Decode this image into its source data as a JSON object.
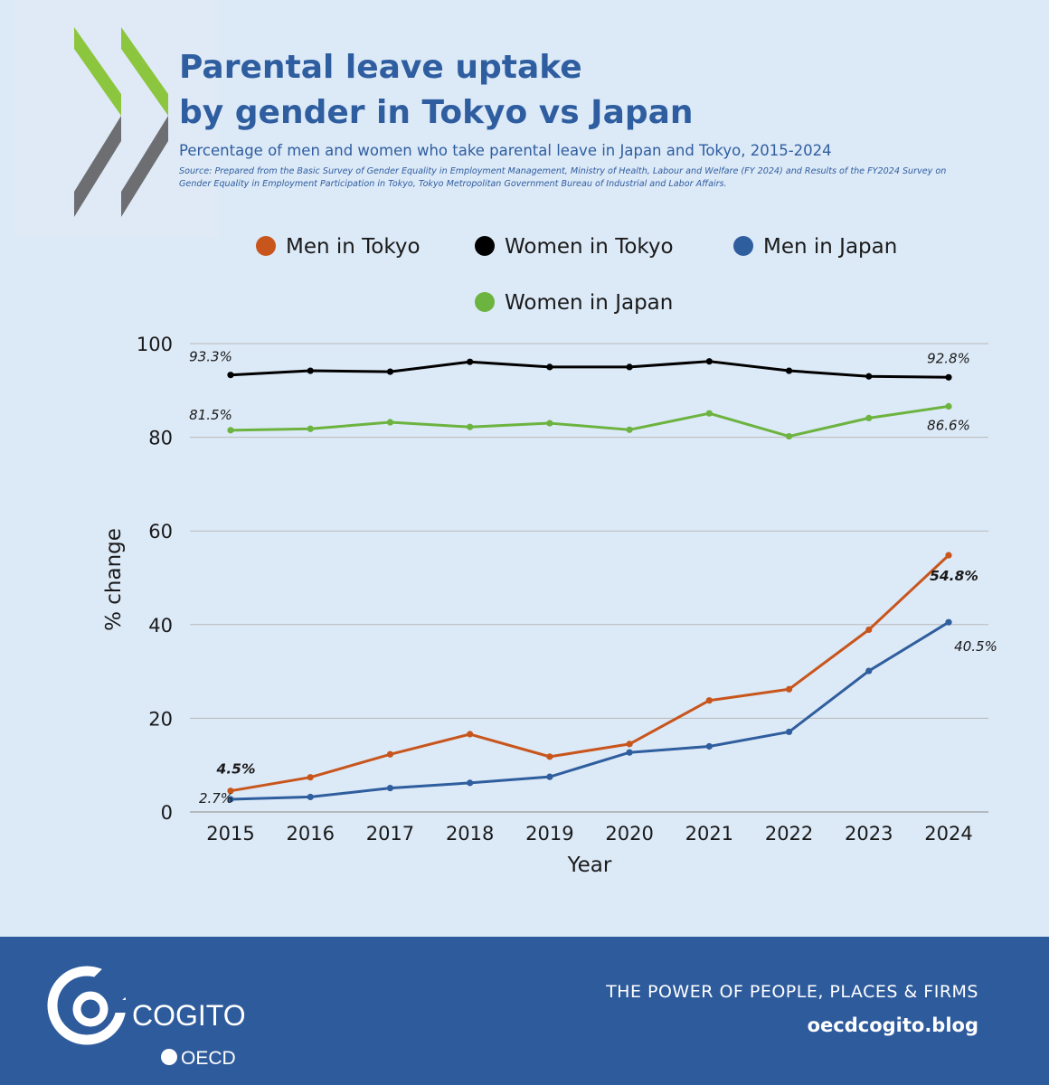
{
  "header": {
    "title_line1": "Parental leave uptake",
    "title_line2": "by gender in Tokyo vs Japan",
    "subtitle": "Percentage of men and women who take parental leave in Japan and Tokyo, 2015-2024",
    "source": "Source: Prepared from the Basic Survey of Gender Equality in Employment Management, Ministry of Health, Labour and Welfare (FY 2024) and Results of the FY2024 Survey on Gender Equality in Employment Participation in Tokyo, Tokyo Metropolitan Government Bureau of Industrial and Labor Affairs."
  },
  "chart_data": {
    "type": "line",
    "x": [
      2015,
      2016,
      2017,
      2018,
      2019,
      2020,
      2021,
      2022,
      2023,
      2024
    ],
    "series": [
      {
        "name": "Men in Tokyo",
        "color": "#c8551c",
        "values": [
          4.5,
          7.4,
          12.3,
          16.6,
          11.8,
          14.5,
          23.8,
          26.2,
          38.9,
          54.8
        ]
      },
      {
        "name": "Women in Tokyo",
        "color": "#000000",
        "values": [
          93.3,
          94.2,
          94.0,
          96.1,
          95.0,
          95.0,
          96.2,
          94.2,
          93.0,
          92.8
        ]
      },
      {
        "name": "Men in Japan",
        "color": "#2f5e9e",
        "values": [
          2.7,
          3.2,
          5.1,
          6.2,
          7.5,
          12.7,
          14.0,
          17.1,
          30.1,
          40.5
        ]
      },
      {
        "name": "Women in Japan",
        "color": "#6cb33f",
        "values": [
          81.5,
          81.8,
          83.2,
          82.2,
          83.0,
          81.6,
          85.1,
          80.2,
          84.1,
          86.6
        ]
      }
    ],
    "annotations": [
      {
        "series": 1,
        "index": 0,
        "text": "93.3%",
        "bold": false
      },
      {
        "series": 1,
        "index": 9,
        "text": "92.8%",
        "bold": false
      },
      {
        "series": 3,
        "index": 0,
        "text": "81.5%",
        "bold": false
      },
      {
        "series": 3,
        "index": 9,
        "text": "86.6%",
        "bold": false
      },
      {
        "series": 0,
        "index": 0,
        "text": "4.5%",
        "bold": true
      },
      {
        "series": 0,
        "index": 9,
        "text": "54.8%",
        "bold": true
      },
      {
        "series": 2,
        "index": 0,
        "text": "2.7%",
        "bold": false
      },
      {
        "series": 2,
        "index": 9,
        "text": "40.5%",
        "bold": false
      }
    ],
    "xlabel": "Year",
    "ylabel": "% change",
    "ylim": [
      0,
      100
    ],
    "yticks": [
      0,
      20,
      40,
      60,
      80,
      100
    ],
    "grid": true,
    "legend_placement": "top"
  },
  "footer": {
    "brand": "COGITO",
    "sub_brand": "OECD",
    "tagline": "THE POWER OF PEOPLE, PLACES & FIRMS",
    "website": "oecdcogito.blog"
  }
}
